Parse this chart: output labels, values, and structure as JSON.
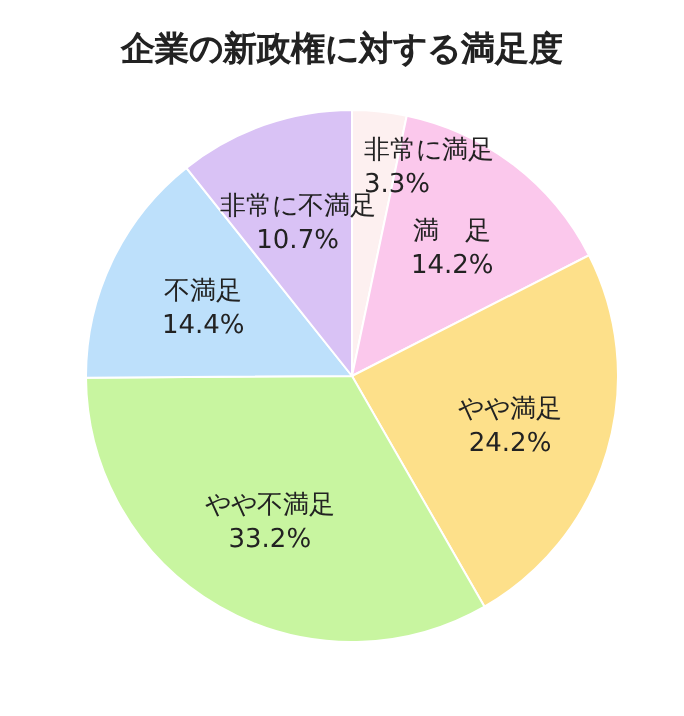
{
  "chart_data": {
    "type": "pie",
    "title": "企業の新政権に対する満足度",
    "categories": [
      "非常に満足",
      "満　足",
      "やや満足",
      "やや不満足",
      "不満足",
      "非常に不満足"
    ],
    "values": [
      3.3,
      14.2,
      24.2,
      33.2,
      14.4,
      10.7
    ],
    "value_labels": [
      "3.3%",
      "14.2%",
      "24.2%",
      "33.2%",
      "14.4%",
      "10.7%"
    ],
    "colors": [
      "#fdf0f0",
      "#fbc8ec",
      "#fde08a",
      "#c8f5a0",
      "#bde0fb",
      "#d9c2f5"
    ]
  }
}
